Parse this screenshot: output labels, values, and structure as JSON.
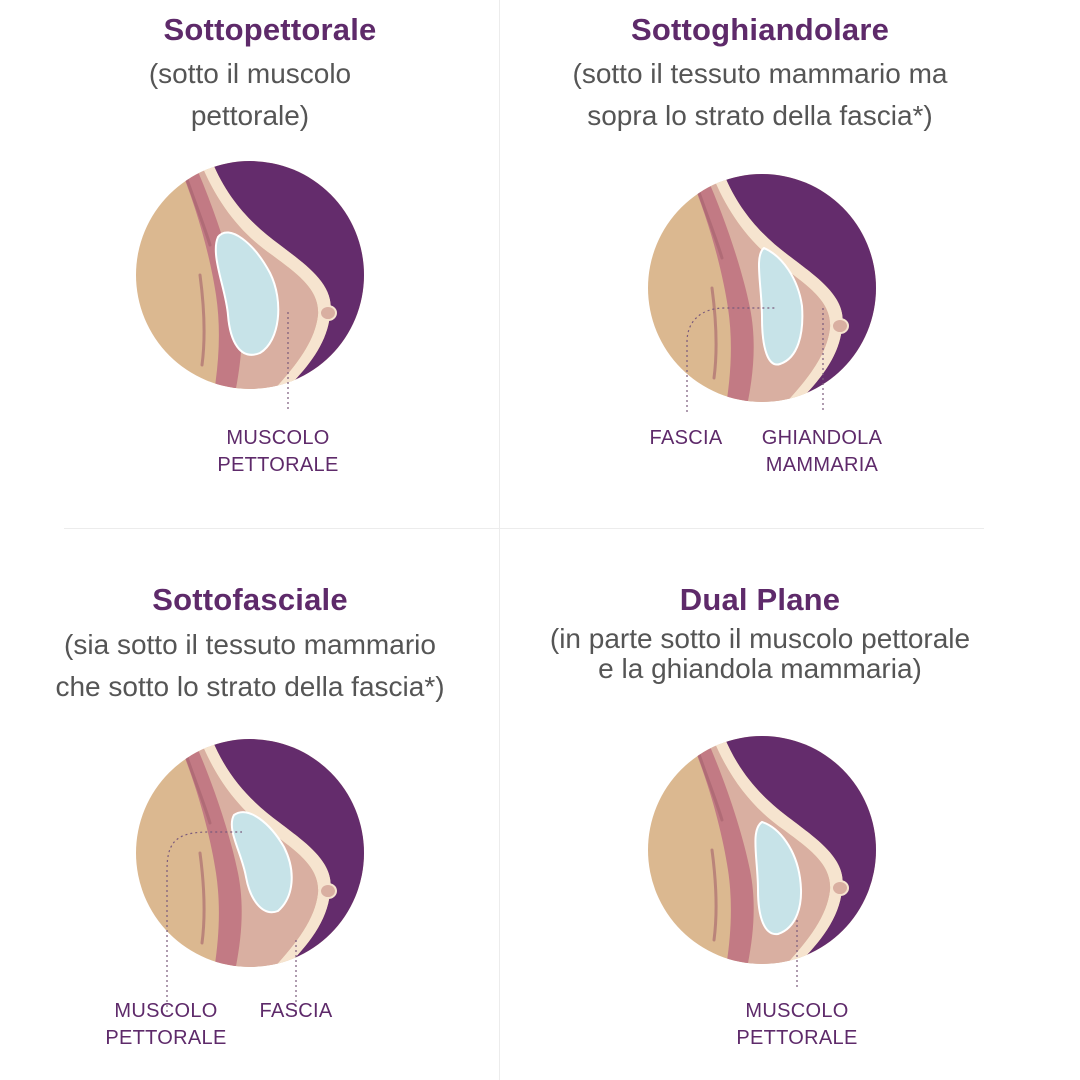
{
  "colors": {
    "title": "#5e2a6a",
    "subtitle": "#555555",
    "label": "#5e2a6a",
    "skin": "#dbb890",
    "breast_tissue": "#d9afa1",
    "muscle": "#c27a84",
    "muscle_dark": "#a4606c",
    "fascia": "#f6e4cf",
    "implant": "#c7e3e8",
    "outer": "#642c6c"
  },
  "panels": [
    {
      "title": "Sottopettorale",
      "subtitle": "(sotto il muscolo\npettorale)",
      "implant_position": "under muscle",
      "labels": [
        {
          "text": "MUSCOLO\nPETTORALE",
          "icon": "dotted-leader"
        }
      ]
    },
    {
      "title": "Sottoghiandolare",
      "subtitle": "(sotto il tessuto mammario ma\nsopra lo strato della fascia*)",
      "implant_position": "under gland",
      "labels": [
        {
          "text": "FASCIA",
          "icon": "dotted-leader"
        },
        {
          "text": "GHIANDOLA\nMAMMARIA",
          "icon": "dotted-leader"
        }
      ]
    },
    {
      "title": "Sottofasciale",
      "subtitle": "(sia sotto il tessuto mammario\nche sotto lo strato della fascia*)",
      "implant_position": "under fascia",
      "labels": [
        {
          "text": "MUSCOLO\nPETTORALE",
          "icon": "dotted-leader"
        },
        {
          "text": "FASCIA",
          "icon": "dotted-leader"
        }
      ]
    },
    {
      "title": "Dual Plane",
      "subtitle": "(in parte sotto il muscolo pettorale\ne la ghiandola mammaria)",
      "implant_position": "dual plane",
      "labels": [
        {
          "text": "MUSCOLO\nPETTORALE",
          "icon": "dotted-leader"
        }
      ]
    }
  ]
}
